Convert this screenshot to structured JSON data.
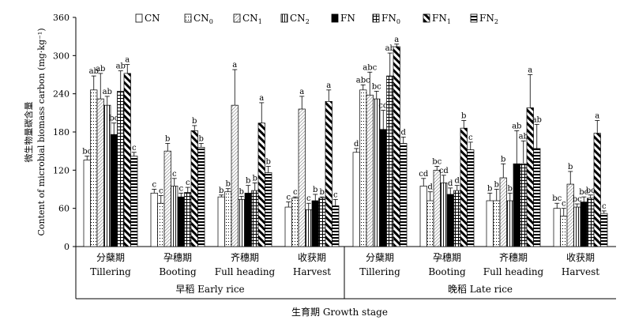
{
  "chart_data": {
    "type": "bar",
    "ylabel_cn": "微生物量碳含量",
    "ylabel_en": "Content of microbial biomass carbon (mg·kg⁻¹)",
    "xlabel": "生育期 Growth stage",
    "ylim": [
      0,
      360
    ],
    "yticks": [
      0,
      60,
      120,
      180,
      240,
      300,
      360
    ],
    "groups": [
      {
        "name": "早稻 Early rice",
        "stages": [
          {
            "cn": "分蘖期",
            "en": "Tillering"
          },
          {
            "cn": "孕穗期",
            "en": "Booting"
          },
          {
            "cn": "齐穗期",
            "en": "Full heading"
          },
          {
            "cn": "收获期",
            "en": "Harvest"
          }
        ]
      },
      {
        "name": "晚稻 Late rice",
        "stages": [
          {
            "cn": "分蘖期",
            "en": "Tillering"
          },
          {
            "cn": "孕穗期",
            "en": "Booting"
          },
          {
            "cn": "齐穗期",
            "en": "Full heading"
          },
          {
            "cn": "收获期",
            "en": "Harvest"
          }
        ]
      }
    ],
    "legend": [
      {
        "base": "CN",
        "sub": ""
      },
      {
        "base": "CN",
        "sub": "0"
      },
      {
        "base": "CN",
        "sub": "1"
      },
      {
        "base": "CN",
        "sub": "2"
      },
      {
        "base": "FN",
        "sub": ""
      },
      {
        "base": "FN",
        "sub": "0"
      },
      {
        "base": "FN",
        "sub": "1"
      },
      {
        "base": "FN",
        "sub": "2"
      }
    ],
    "series": [
      {
        "name": "CN",
        "values": [
          136,
          84,
          78,
          62,
          148,
          95,
          72,
          60
        ],
        "errors": [
          6,
          6,
          3,
          8,
          6,
          12,
          12,
          8
        ],
        "letters": [
          "bc",
          "c",
          "b",
          "c",
          "d",
          "cd",
          "b",
          "bc"
        ]
      },
      {
        "name": "CN0",
        "values": [
          246,
          68,
          86,
          76,
          246,
          72,
          72,
          48
        ],
        "errors": [
          22,
          12,
          5,
          2,
          8,
          14,
          18,
          12
        ],
        "letters": [
          "ab",
          "c",
          "b",
          "c",
          "abc",
          "d",
          "b",
          "c"
        ]
      },
      {
        "name": "CN1",
        "values": [
          232,
          150,
          222,
          216,
          238,
          120,
          108,
          98
        ],
        "errors": [
          40,
          12,
          56,
          20,
          36,
          6,
          22,
          20
        ],
        "letters": [
          "ab",
          "b",
          "a",
          "a",
          "abc",
          "bc",
          "b",
          "b"
        ]
      },
      {
        "name": "CN2",
        "values": [
          222,
          95,
          74,
          58,
          232,
          100,
          72,
          62
        ],
        "errors": [
          14,
          12,
          5,
          10,
          12,
          12,
          12,
          5
        ],
        "letters": [
          "ab",
          "c",
          "b",
          "c",
          "bc",
          "cd",
          "b",
          "bc"
        ]
      },
      {
        "name": "FN",
        "values": [
          176,
          78,
          84,
          72,
          184,
          82,
          130,
          70
        ],
        "errors": [
          18,
          6,
          12,
          10,
          30,
          10,
          52,
          8
        ],
        "letters": [
          "bc",
          "c",
          "b",
          "b",
          "cd",
          "d",
          "ab",
          "bc"
        ]
      },
      {
        "name": "FN0",
        "values": [
          244,
          85,
          88,
          76,
          268,
          88,
          130,
          76
        ],
        "errors": [
          32,
          8,
          12,
          2,
          36,
          8,
          36,
          5
        ],
        "letters": [
          "ab",
          "c",
          "b",
          "b",
          "ab",
          "d",
          "ab",
          "bc"
        ]
      },
      {
        "name": "FN1",
        "values": [
          272,
          182,
          194,
          228,
          314,
          186,
          218,
          178
        ],
        "errors": [
          14,
          8,
          32,
          18,
          4,
          12,
          52,
          20
        ],
        "letters": [
          "a",
          "b",
          "a",
          "a",
          "a",
          "b",
          "a",
          "a"
        ]
      },
      {
        "name": "FN2",
        "values": [
          142,
          156,
          116,
          64,
          162,
          152,
          154,
          52
        ],
        "errors": [
          6,
          6,
          10,
          10,
          10,
          12,
          38,
          4
        ],
        "letters": [
          "c",
          "b",
          "b",
          "c",
          "d",
          "c",
          "ab",
          "c"
        ]
      }
    ]
  }
}
